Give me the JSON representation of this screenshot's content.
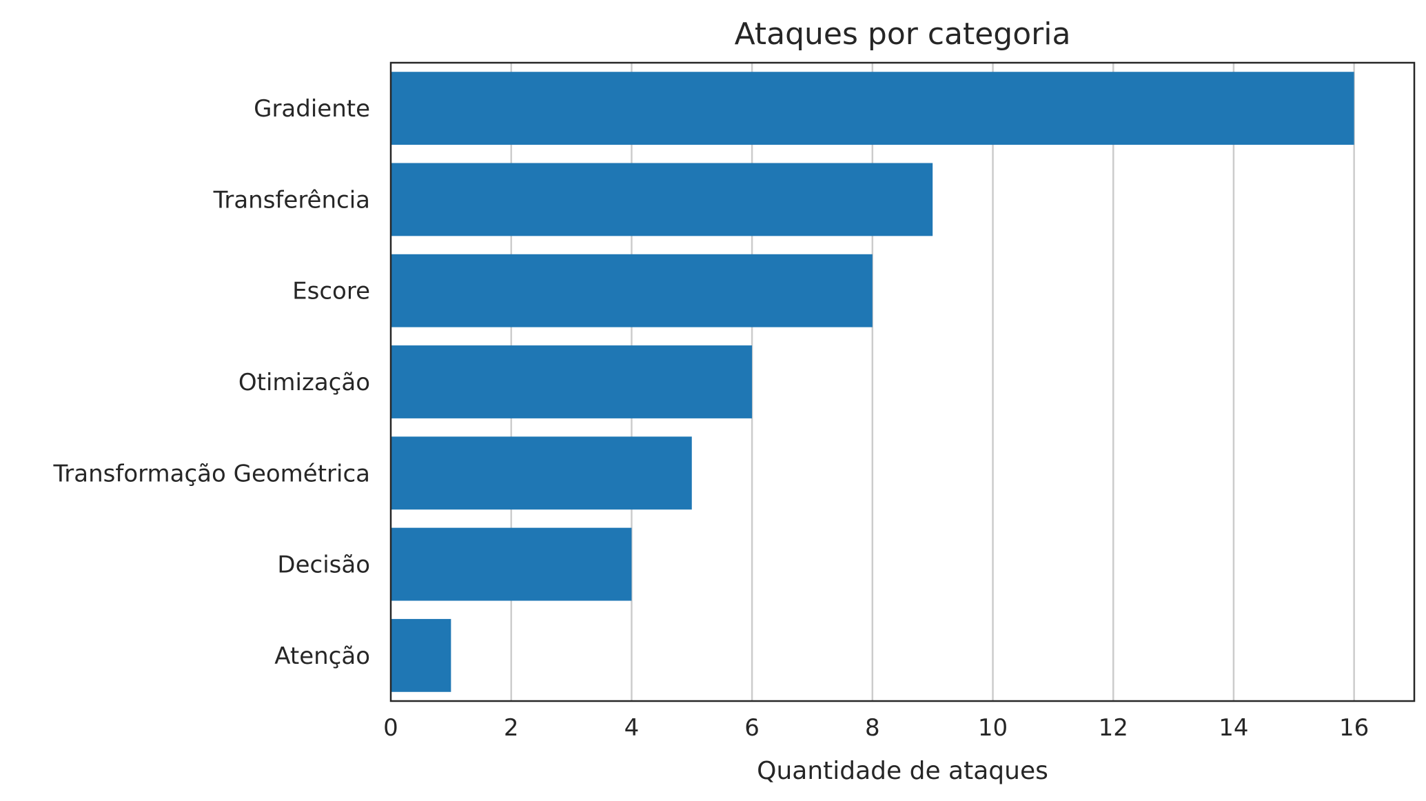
{
  "chart_data": {
    "type": "bar",
    "orientation": "horizontal",
    "title": "Ataques por categoria",
    "xlabel": "Quantidade de ataques",
    "ylabel": "",
    "categories": [
      "Gradiente",
      "Transferência",
      "Escore",
      "Otimização",
      "Transformação Geométrica",
      "Decisão",
      "Atenção"
    ],
    "values": [
      16,
      9,
      8,
      6,
      5,
      4,
      1
    ],
    "xlim": [
      0,
      17
    ],
    "xticks": [
      "0",
      "2",
      "4",
      "6",
      "8",
      "10",
      "12",
      "14",
      "16"
    ],
    "grid": "vertical",
    "colors": {
      "bar": "#1f77b4",
      "grid": "#cccccc",
      "frame": "#262626",
      "text": "#262626"
    }
  }
}
